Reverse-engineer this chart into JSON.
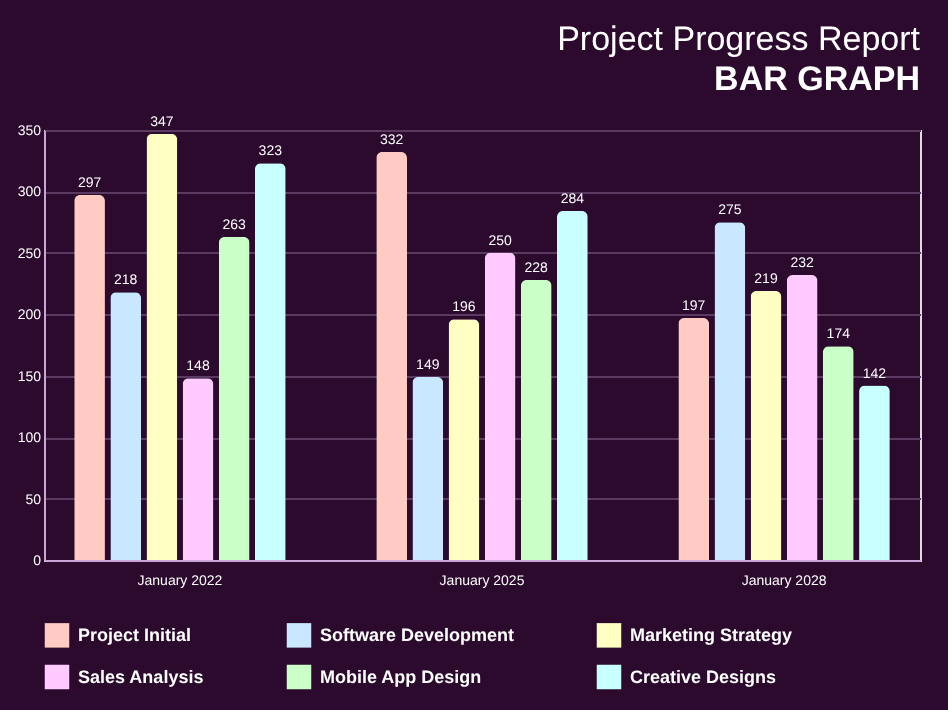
{
  "chart_data": {
    "type": "bar",
    "title": "Project Progress Report",
    "subtitle": "BAR GRAPH",
    "categories": [
      "January 2022",
      "January 2025",
      "January 2028"
    ],
    "series": [
      {
        "name": "Project Initial",
        "color": "#ffcbc2",
        "values": [
          297,
          332,
          197
        ]
      },
      {
        "name": "Software Development",
        "color": "#c9e8ff",
        "values": [
          218,
          149,
          275
        ]
      },
      {
        "name": "Marketing Strategy",
        "color": "#ffffc4",
        "values": [
          347,
          196,
          219
        ]
      },
      {
        "name": "Sales Analysis",
        "color": "#ffcbff",
        "values": [
          148,
          250,
          232
        ]
      },
      {
        "name": "Mobile App Design",
        "color": "#caffc8",
        "values": [
          263,
          228,
          174
        ]
      },
      {
        "name": "Creative Designs",
        "color": "#c8ffff",
        "values": [
          323,
          284,
          142
        ]
      }
    ],
    "ylim": [
      0,
      350
    ],
    "yticks": [
      0,
      50,
      100,
      150,
      200,
      250,
      300,
      350
    ],
    "grid": "y",
    "legend": "bottom",
    "data_labels": true
  }
}
